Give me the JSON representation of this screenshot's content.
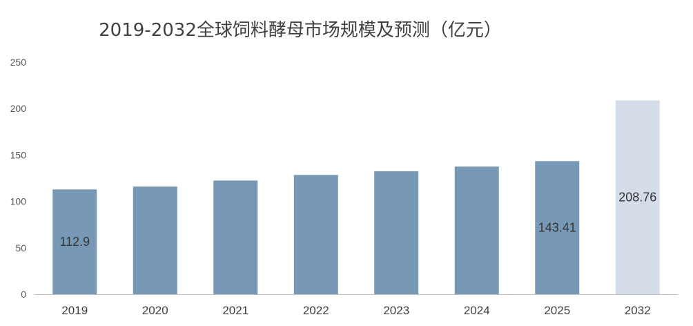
{
  "chart_data": {
    "type": "bar",
    "title": "2019-2032全球饲料酵母市场规模及预测（亿元）",
    "xlabel": "",
    "ylabel": "",
    "categories": [
      "2019",
      "2020",
      "2021",
      "2022",
      "2023",
      "2024",
      "2025",
      "2032"
    ],
    "values": [
      112.9,
      116,
      122.5,
      128.5,
      132.5,
      137.5,
      143.41,
      208.76
    ],
    "data_labels": [
      "112.9",
      "",
      "",
      "",
      "",
      "",
      "143.41",
      "208.76"
    ],
    "ylim": [
      0,
      250
    ],
    "yticks": [
      0,
      50,
      100,
      150,
      200,
      250
    ],
    "grid": false,
    "legend": "none",
    "colors": {
      "actual": "#7799b5",
      "forecast": "#d5dde8",
      "axis": "#bfbfbf"
    },
    "forecast_categories": [
      "2032"
    ]
  }
}
